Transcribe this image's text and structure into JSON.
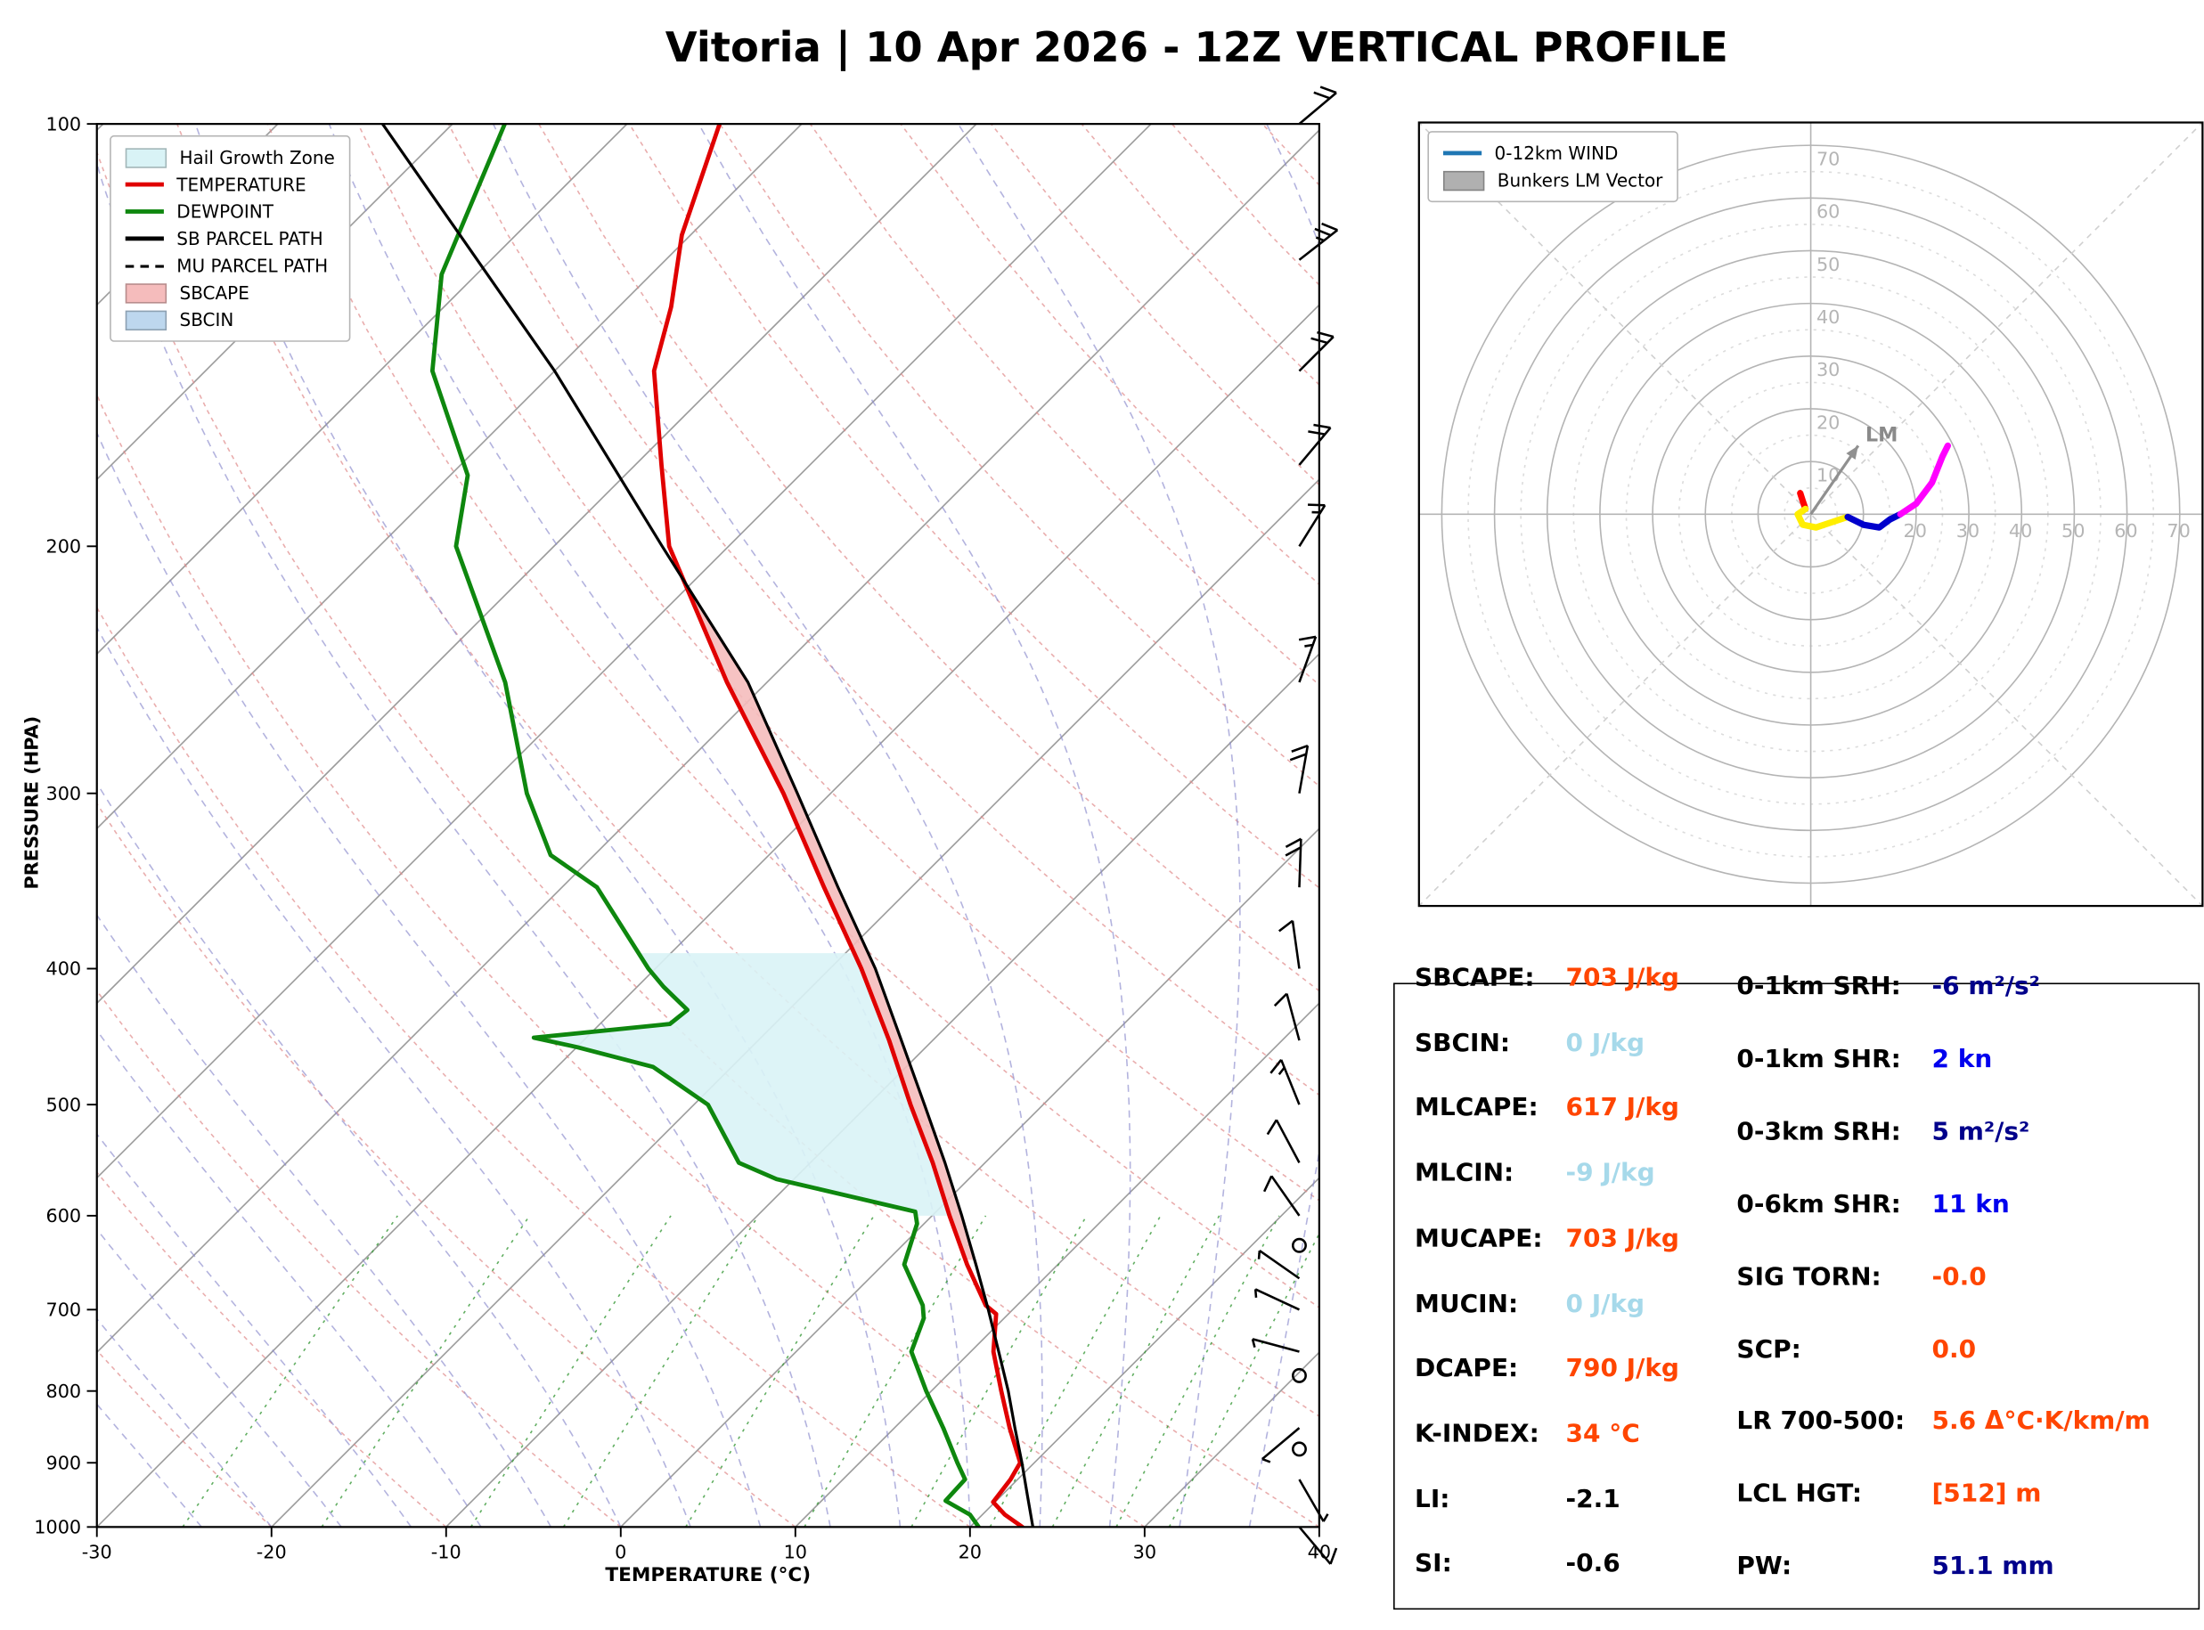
{
  "title": "Vitoria | 10 Apr 2026 - 12Z VERTICAL PROFILE",
  "chart_data": [
    {
      "type": "line",
      "name": "skewt-log-p",
      "xlabel": "TEMPERATURE (°C)",
      "ylabel": "PRESSURE (HPA)",
      "xlim": [
        -30,
        40
      ],
      "ylim": [
        1000,
        100
      ],
      "y_scale": "log",
      "skew": "45deg",
      "x_ticks": [
        -30,
        -20,
        -10,
        0,
        10,
        20,
        30,
        40
      ],
      "y_ticks": [
        100,
        200,
        300,
        400,
        500,
        600,
        700,
        800,
        900,
        1000
      ],
      "legend": [
        {
          "label": "Hail Growth Zone",
          "swatch": "patch",
          "color": "#d9f3f6"
        },
        {
          "label": "TEMPERATURE",
          "swatch": "line",
          "color": "#e00000"
        },
        {
          "label": "DEWPOINT",
          "swatch": "line",
          "color": "#0e870e"
        },
        {
          "label": "SB PARCEL PATH",
          "swatch": "line",
          "color": "#000000"
        },
        {
          "label": "MU PARCEL PATH",
          "swatch": "dashed-line",
          "color": "#000000"
        },
        {
          "label": "SBCAPE",
          "swatch": "patch",
          "color": "#f5bcbc"
        },
        {
          "label": "SBCIN",
          "swatch": "patch",
          "color": "#bdd7ee"
        }
      ],
      "background": {
        "isotherm_color": "#9b9b9b",
        "dry_adiabat_color": "#e08a8a",
        "moist_adiabat_color": "#8a8acc",
        "mixing_ratio_color": "#3a9a3a"
      },
      "series": [
        {
          "name": "TEMPERATURE",
          "color": "#e00000",
          "width": 3,
          "points": [
            [
              1000,
              23.0
            ],
            [
              980,
              21.3
            ],
            [
              960,
              19.9
            ],
            [
              925,
              19.6
            ],
            [
              900,
              19.2
            ],
            [
              850,
              16.6
            ],
            [
              800,
              14.0
            ],
            [
              750,
              11.3
            ],
            [
              705,
              9.3
            ],
            [
              695,
              8.2
            ],
            [
              650,
              4.8
            ],
            [
              600,
              1.0
            ],
            [
              550,
              -3.0
            ],
            [
              500,
              -7.6
            ],
            [
              450,
              -12.5
            ],
            [
              400,
              -18.2
            ],
            [
              350,
              -25.0
            ],
            [
              300,
              -32.7
            ],
            [
              250,
              -42.3
            ],
            [
              200,
              -53.4
            ],
            [
              175,
              -58.5
            ],
            [
              150,
              -64.3
            ],
            [
              135,
              -67.0
            ],
            [
              120,
              -70.5
            ],
            [
              100,
              -74.7
            ]
          ]
        },
        {
          "name": "DEWPOINT",
          "color": "#0e870e",
          "width": 3,
          "points": [
            [
              1000,
              20.5
            ],
            [
              980,
              19.3
            ],
            [
              958,
              17.1
            ],
            [
              925,
              17.0
            ],
            [
              900,
              15.6
            ],
            [
              850,
              12.8
            ],
            [
              800,
              9.7
            ],
            [
              750,
              6.6
            ],
            [
              710,
              5.4
            ],
            [
              695,
              4.6
            ],
            [
              650,
              1.2
            ],
            [
              608,
              -0.4
            ],
            [
              596,
              -1.2
            ],
            [
              565,
              -11.0
            ],
            [
              550,
              -14.1
            ],
            [
              500,
              -19.2
            ],
            [
              470,
              -24.5
            ],
            [
              455,
              -30.0
            ],
            [
              448,
              -33.0
            ],
            [
              438,
              -26.0
            ],
            [
              428,
              -25.8
            ],
            [
              412,
              -28.5
            ],
            [
              400,
              -30.4
            ],
            [
              350,
              -38.0
            ],
            [
              332,
              -42.5
            ],
            [
              300,
              -47.4
            ],
            [
              250,
              -55.0
            ],
            [
              200,
              -65.6
            ],
            [
              178,
              -69.0
            ],
            [
              150,
              -77.0
            ],
            [
              128,
              -82.0
            ],
            [
              100,
              -87.0
            ]
          ]
        },
        {
          "name": "SB PARCEL PATH",
          "color": "#000000",
          "width": 2,
          "points": [
            [
              1000,
              23.6
            ],
            [
              950,
              21.5
            ],
            [
              900,
              19.3
            ],
            [
              850,
              16.9
            ],
            [
              800,
              14.4
            ],
            [
              750,
              11.6
            ],
            [
              700,
              8.6
            ],
            [
              650,
              5.3
            ],
            [
              600,
              1.7
            ],
            [
              550,
              -2.3
            ],
            [
              500,
              -6.8
            ],
            [
              450,
              -11.8
            ],
            [
              400,
              -17.4
            ],
            [
              350,
              -24.2
            ],
            [
              300,
              -31.9
            ],
            [
              250,
              -41.1
            ],
            [
              200,
              -53.8
            ],
            [
              150,
              -70.0
            ],
            [
              100,
              -94.0
            ]
          ]
        },
        {
          "name": "MU PARCEL PATH",
          "color": "#000000",
          "width": 1.6,
          "dash": "7 5",
          "points": [
            [
              1000,
              23.6
            ],
            [
              950,
              21.5
            ],
            [
              900,
              19.3
            ],
            [
              850,
              16.9
            ],
            [
              800,
              14.4
            ],
            [
              750,
              11.6
            ],
            [
              700,
              8.6
            ],
            [
              650,
              5.3
            ],
            [
              600,
              1.7
            ],
            [
              550,
              -2.3
            ],
            [
              500,
              -6.8
            ],
            [
              450,
              -11.8
            ],
            [
              400,
              -17.4
            ],
            [
              350,
              -24.2
            ],
            [
              300,
              -31.9
            ],
            [
              250,
              -41.1
            ],
            [
              200,
              -53.8
            ],
            [
              150,
              -70.0
            ],
            [
              100,
              -94.0
            ]
          ]
        }
      ],
      "shaded_regions": [
        {
          "name": "Hail Growth Zone",
          "color": "#d9f3f6",
          "opacity": 0.9,
          "p_range": [
            600,
            390
          ],
          "between": [
            "DEWPOINT",
            "TEMPERATURE"
          ]
        },
        {
          "name": "SBCAPE",
          "color": "#f5bcbc",
          "opacity": 0.9,
          "p_range": [
            645,
            210
          ],
          "between": [
            "TEMPERATURE",
            "SB PARCEL PATH"
          ]
        }
      ],
      "winds_p_spd_dir": [
        [
          100,
          20,
          50
        ],
        [
          125,
          25,
          52
        ],
        [
          150,
          22,
          45
        ],
        [
          175,
          20,
          40
        ],
        [
          200,
          15,
          32
        ],
        [
          250,
          15,
          20
        ],
        [
          300,
          20,
          10
        ],
        [
          350,
          18,
          2
        ],
        [
          400,
          12,
          352
        ],
        [
          450,
          10,
          345
        ],
        [
          500,
          14,
          338
        ],
        [
          550,
          10,
          332
        ],
        [
          600,
          8,
          325
        ],
        [
          630,
          0,
          0
        ],
        [
          665,
          5,
          305
        ],
        [
          700,
          5,
          295
        ],
        [
          750,
          4,
          285
        ],
        [
          780,
          0,
          0
        ],
        [
          850,
          3,
          230
        ],
        [
          880,
          0,
          0
        ],
        [
          925,
          3,
          150
        ],
        [
          1000,
          8,
          140
        ]
      ]
    },
    {
      "type": "line",
      "name": "hodograph",
      "max_kn": 70,
      "ring_step_kn": 10,
      "ring_labels_vertical": [
        10,
        20,
        30,
        40,
        50,
        60,
        70
      ],
      "ring_labels_horizontal": [
        20,
        30,
        40,
        50,
        60,
        70
      ],
      "lm_label": "LM",
      "lm_point_uv_kn": [
        9,
        13
      ],
      "legend": [
        {
          "label": "0-12km WIND",
          "swatch": "line",
          "color": "#1f77b4"
        },
        {
          "label": "Bunkers LM Vector",
          "swatch": "patch",
          "color": "#b0b0b0"
        }
      ],
      "segments": [
        {
          "color": "#ff0000",
          "points": [
            [
              -2,
              4
            ],
            [
              -1.5,
              2.5
            ],
            [
              -1,
              1
            ]
          ]
        },
        {
          "color": "#ffee00",
          "points": [
            [
              -1,
              1
            ],
            [
              -2.5,
              0
            ],
            [
              -1.5,
              -2
            ],
            [
              1,
              -2.5
            ],
            [
              4,
              -1.5
            ],
            [
              7,
              -0.5
            ]
          ]
        },
        {
          "color": "#0000cc",
          "points": [
            [
              7,
              -0.5
            ],
            [
              10,
              -2
            ],
            [
              13,
              -2.5
            ],
            [
              15,
              -1
            ],
            [
              17,
              0
            ]
          ]
        },
        {
          "color": "#ff00ff",
          "points": [
            [
              17,
              0
            ],
            [
              20,
              2
            ],
            [
              23,
              6
            ],
            [
              25,
              11
            ],
            [
              26,
              13
            ]
          ]
        }
      ]
    }
  ],
  "stats": {
    "left": [
      {
        "label": "SBCAPE:",
        "value": "703 J/kg",
        "color": "#ff4500"
      },
      {
        "label": "SBCIN:",
        "value": "0 J/kg",
        "color": "#a6d9ea"
      },
      {
        "label": "MLCAPE:",
        "value": "617 J/kg",
        "color": "#ff4500"
      },
      {
        "label": "MLCIN:",
        "value": "-9 J/kg",
        "color": "#a6d9ea"
      },
      {
        "label": "MUCAPE:",
        "value": "703 J/kg",
        "color": "#ff4500"
      },
      {
        "label": "MUCIN:",
        "value": "0 J/kg",
        "color": "#a6d9ea"
      },
      {
        "label": "DCAPE:",
        "value": "790 J/kg",
        "color": "#ff4500"
      },
      {
        "label": "K-INDEX:",
        "value": "34 °C",
        "color": "#ff4500"
      },
      {
        "label": "LI:",
        "value": "-2.1",
        "color": "#000000"
      },
      {
        "label": "SI:",
        "value": "-0.6",
        "color": "#000000"
      }
    ],
    "right": [
      {
        "label": "0-1km SRH:",
        "value": "-6 m²/s²",
        "color": "#00008b"
      },
      {
        "label": "0-1km SHR:",
        "value": "2 kn",
        "color": "#0000ee"
      },
      {
        "label": "0-3km SRH:",
        "value": "5 m²/s²",
        "color": "#00008b"
      },
      {
        "label": "0-6km SHR:",
        "value": "11 kn",
        "color": "#0000ee"
      },
      {
        "label": "SIG TORN:",
        "value": "-0.0",
        "color": "#ff4500"
      },
      {
        "label": "SCP:",
        "value": "0.0",
        "color": "#ff4500"
      },
      {
        "label": "LR 700-500:",
        "value": "5.6 Δ°C·K/km/m",
        "color": "#ff4500"
      },
      {
        "label": "LCL HGT:",
        "value": "[512] m",
        "color": "#ff4500"
      },
      {
        "label": "PW:",
        "value": "51.1 mm",
        "color": "#00008b"
      }
    ]
  }
}
